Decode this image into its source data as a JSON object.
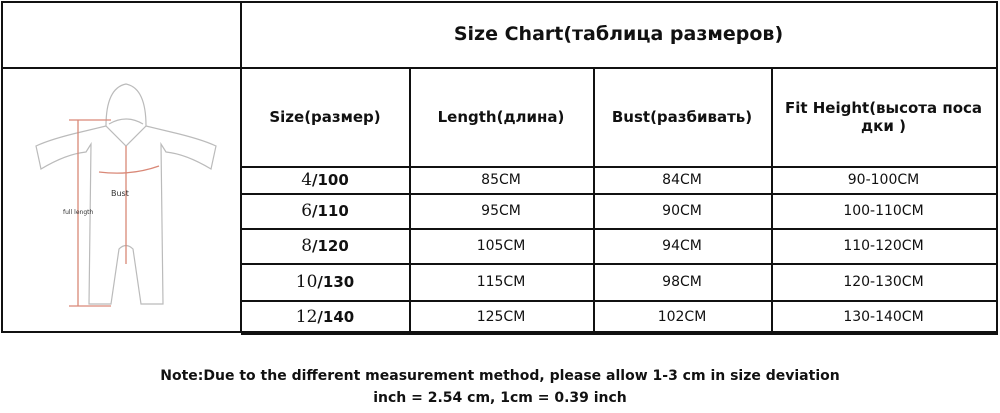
{
  "title": "Size Chart(таблица размеров)",
  "figure": {
    "bust_label": "Bust",
    "length_label": "full length"
  },
  "headers": [
    "Size(размер)",
    "Length(длина)",
    "Bust(разбивать)",
    "Fit Height(высота поса дки )"
  ],
  "rows": [
    {
      "num": "4",
      "size": "/100",
      "length": "85CM",
      "bust": "84CM",
      "height": "90-100CM"
    },
    {
      "num": "6",
      "size": "/110",
      "length": "95CM",
      "bust": "90CM",
      "height": "100-110CM"
    },
    {
      "num": "8",
      "size": "/120",
      "length": "105CM",
      "bust": "94CM",
      "height": "110-120CM"
    },
    {
      "num": "10",
      "size": "/130",
      "length": "115CM",
      "bust": "98CM",
      "height": "120-130CM"
    },
    {
      "num": "12",
      "size": "/140",
      "length": "125CM",
      "bust": "102CM",
      "height": "130-140CM"
    }
  ],
  "note": {
    "line1": "Note:Due to the different measurement method, please allow 1-3 cm in size deviation",
    "line2": "inch = 2.54 cm, 1cm = 0.39 inch"
  }
}
